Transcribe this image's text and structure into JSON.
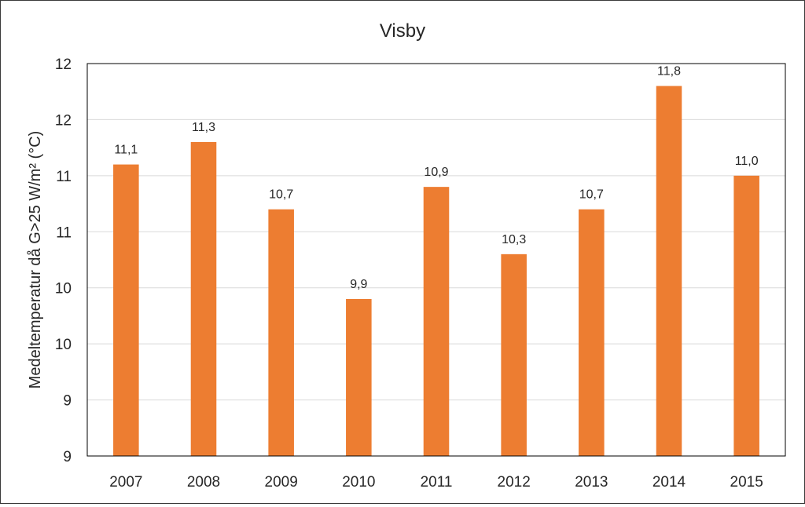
{
  "chart_data": {
    "type": "bar",
    "title": "Visby",
    "xlabel": "",
    "ylabel": "Medeltemperatur då G>25 W/m² (°C)",
    "categories": [
      "2007",
      "2008",
      "2009",
      "2010",
      "2011",
      "2012",
      "2013",
      "2014",
      "2015"
    ],
    "values": [
      11.1,
      11.3,
      10.7,
      9.9,
      10.9,
      10.3,
      10.7,
      11.8,
      11.0
    ],
    "data_labels": [
      "11,1",
      "11,3",
      "10,7",
      "9,9",
      "10,9",
      "10,3",
      "10,7",
      "11,8",
      "11,0"
    ],
    "ylim": [
      8.5,
      12.0
    ],
    "y_ticks": [
      8.5,
      9.0,
      9.5,
      10.0,
      10.5,
      11.0,
      11.5,
      12.0
    ],
    "y_tick_labels": [
      "9",
      "9",
      "10",
      "10",
      "11",
      "11",
      "12",
      "12"
    ],
    "grid": true,
    "legend": "none",
    "bar_color": "#ED7D31",
    "grid_color": "#D9D9D9",
    "axis_color": "#000000"
  }
}
